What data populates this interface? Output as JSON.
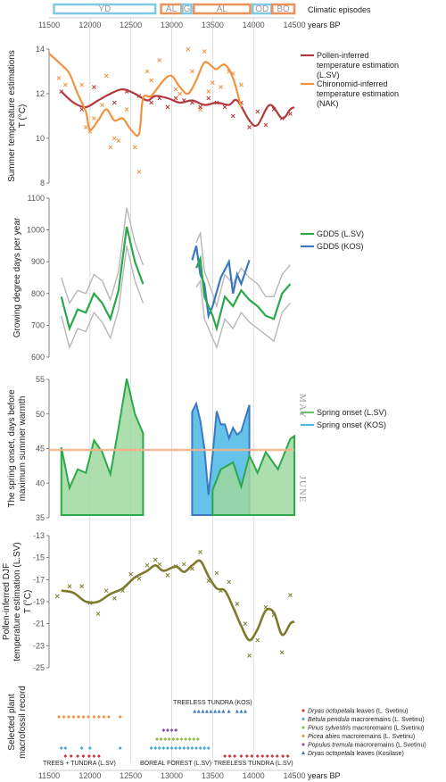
{
  "header": {
    "episodes_label": "Climatic episodes",
    "xunit": "years BP",
    "episodes": [
      {
        "label": "YD",
        "start": 11560,
        "end": 12800,
        "color": "#7fc9e6"
      },
      {
        "label": "AL",
        "start": 12870,
        "end": 13120,
        "color": "#e8915a"
      },
      {
        "label": "G",
        "start": 13130,
        "end": 13240,
        "color": "#7fc9e6"
      },
      {
        "label": "AL",
        "start": 13270,
        "end": 13960,
        "color": "#e8915a"
      },
      {
        "label": "OD",
        "start": 13990,
        "end": 14220,
        "color": "#7fc9e6"
      },
      {
        "label": "BO",
        "start": 14230,
        "end": 14500,
        "color": "#e8915a"
      }
    ],
    "xticks": [
      11500,
      12000,
      12500,
      13000,
      13500,
      14000,
      14500
    ]
  },
  "colors": {
    "red": "#b2383d",
    "orange": "#ef9340",
    "green": "#2aa84a",
    "olive": "#7d7a2c",
    "gray": "#b7b7b7",
    "blue": "#3b78c2",
    "fillgreen": "#9fd89f",
    "fillblue": "#4ab9e6"
  },
  "chart_data": [
    {
      "type": "line",
      "ylabel": "Summer temperature estimations T (°C)",
      "ylim": [
        8,
        14
      ],
      "yticks": [
        8,
        10,
        12,
        14
      ],
      "legend": [
        "Pollen-inferred temperature estimation (L.SV)",
        "Chironomid-inferred temperature estimation (NAK)"
      ],
      "series": [
        {
          "name": "Pollen-inferred temperature estimation (L.SV)",
          "color": "#b2383d",
          "x": [
            11650,
            11800,
            11950,
            12100,
            12250,
            12400,
            12550,
            12700,
            12800,
            12950,
            13100,
            13250,
            13400,
            13550,
            13700,
            13800,
            13950,
            14050,
            14200,
            14350,
            14450,
            14500
          ],
          "y": [
            12.1,
            11.6,
            11.4,
            11.7,
            12.0,
            12.2,
            12.0,
            11.7,
            11.9,
            11.8,
            11.6,
            11.7,
            11.5,
            11.6,
            11.5,
            11.7,
            10.8,
            10.6,
            11.5,
            10.9,
            11.3,
            11.4
          ]
        },
        {
          "name": "Chironomid-inferred temperature estimation (NAK)",
          "color": "#ef9340",
          "x": [
            11500,
            11650,
            11750,
            11850,
            11950,
            12000,
            12100,
            12200,
            12300,
            12400,
            12500,
            12600,
            12650,
            12750,
            12900,
            13000,
            13100,
            13200,
            13300,
            13400,
            13500,
            13550,
            13650,
            13750,
            13850
          ],
          "y": [
            13.8,
            13.3,
            12.9,
            12.0,
            11.2,
            10.4,
            10.8,
            11.3,
            10.8,
            10.9,
            10.4,
            10.2,
            11.8,
            11.9,
            12.6,
            12.8,
            12.3,
            12.0,
            12.6,
            13.4,
            13.2,
            13.1,
            13.3,
            12.7,
            11.4
          ]
        }
      ],
      "scatter": [
        {
          "color": "#ef9340",
          "x": [
            11620,
            11700,
            11900,
            11950,
            12000,
            12050,
            12150,
            12200,
            12250,
            12300,
            12350,
            12450,
            12550,
            12600,
            12700,
            12750,
            12850,
            12950,
            13050,
            13100,
            13200,
            13250,
            13350,
            13400,
            13450,
            13500,
            13600,
            13700,
            13750,
            13850
          ],
          "y": [
            12.7,
            12.4,
            12.4,
            10.5,
            10.3,
            10.9,
            11.5,
            12.8,
            9.6,
            10.0,
            9.9,
            11.3,
            9.6,
            8.5,
            13.0,
            12.6,
            13.5,
            11.4,
            12.2,
            12.0,
            14.0,
            13.0,
            11.3,
            13.9,
            12.1,
            12.5,
            12.3,
            13.0,
            12.9,
            12.4
          ]
        },
        {
          "color": "#b2383d",
          "x": [
            11650,
            11900,
            12050,
            12300,
            12450,
            12600,
            12750,
            12850,
            12950,
            13050,
            13150,
            13250,
            13350,
            13450,
            13550,
            13650,
            13750,
            13850,
            13950,
            14050,
            14150,
            14250,
            14350,
            14450
          ],
          "y": [
            12.1,
            11.3,
            12.3,
            11.6,
            12.1,
            11.9,
            11.6,
            11.8,
            11.4,
            11.8,
            11.7,
            11.6,
            11.4,
            11.8,
            11.6,
            11.4,
            11.0,
            11.6,
            10.5,
            11.2,
            10.6,
            11.3,
            10.9,
            11.1
          ]
        }
      ]
    },
    {
      "type": "line",
      "ylabel": "Growing degree days per year",
      "ylim": [
        600,
        1100
      ],
      "yticks": [
        600,
        700,
        800,
        900,
        1000,
        1100
      ],
      "legend": [
        "GDD5 (L.SV)",
        "GDD5 (KOS)"
      ],
      "series": [
        {
          "name": "GDD5 (L.SV)",
          "color": "#2aa84a",
          "x": [
            11650,
            11750,
            11850,
            11950,
            12050,
            12150,
            12250,
            12350,
            12450,
            12550,
            12650
          ],
          "y": [
            790,
            690,
            750,
            740,
            800,
            770,
            720,
            810,
            1010,
            900,
            830
          ]
        },
        {
          "name": "GDD5 (KOS)",
          "color": "#3b78c2",
          "x": [
            13250,
            13300,
            13350,
            13400,
            13450,
            13500,
            13600,
            13700,
            13750,
            13800,
            13850,
            13950
          ],
          "y": [
            905,
            950,
            860,
            830,
            730,
            760,
            850,
            900,
            800,
            860,
            830,
            905
          ]
        },
        {
          "name": "",
          "color": "#2aa84a",
          "x": [
            13300,
            13350,
            13400,
            13500,
            13550,
            13650,
            13750,
            13850,
            13950,
            14050,
            14150,
            14250,
            14350,
            14450
          ],
          "y": [
            880,
            910,
            790,
            730,
            690,
            790,
            760,
            810,
            780,
            760,
            730,
            720,
            800,
            830
          ]
        }
      ],
      "bounds_upper": [
        {
          "x": [
            11650,
            11750,
            11850,
            11950,
            12050,
            12150,
            12250,
            12350,
            12450,
            12550,
            12650
          ],
          "y": [
            850,
            770,
            810,
            800,
            860,
            840,
            780,
            870,
            1070,
            960,
            890
          ]
        },
        {
          "x": [
            13300,
            13350,
            13400,
            13500,
            13550,
            13650,
            13750,
            13850,
            13950,
            14050,
            14150,
            14250,
            14350,
            14450
          ],
          "y": [
            960,
            990,
            870,
            800,
            760,
            860,
            830,
            880,
            850,
            830,
            790,
            790,
            860,
            890
          ]
        }
      ],
      "bounds_lower": [
        {
          "x": [
            11650,
            11750,
            11850,
            11950,
            12050,
            12150,
            12250,
            12350,
            12450,
            12550,
            12650
          ],
          "y": [
            730,
            630,
            690,
            680,
            740,
            710,
            660,
            750,
            950,
            840,
            770
          ]
        },
        {
          "x": [
            13300,
            13350,
            13400,
            13500,
            13550,
            13650,
            13750,
            13850,
            13950,
            14050,
            14150,
            14250,
            14350,
            14450
          ],
          "y": [
            820,
            840,
            720,
            660,
            630,
            720,
            690,
            740,
            710,
            690,
            670,
            650,
            740,
            770
          ]
        }
      ]
    },
    {
      "type": "area",
      "ylabel": "The spring onset, days before maximum summer warmth",
      "ylim": [
        35,
        55
      ],
      "yticks": [
        35,
        40,
        45,
        50,
        55
      ],
      "reference_line": 44.8,
      "right_labels": [
        "MAY",
        "JUNE"
      ],
      "legend": [
        "Spring onset (L.SV)",
        "Spring onset (KOS)"
      ],
      "series": [
        {
          "name": "Spring onset (L.SV)",
          "color": "#2aa84a",
          "fill": "#9fd89f",
          "x": [
            11650,
            11750,
            11850,
            11950,
            12050,
            12150,
            12250,
            12350,
            12450,
            12550,
            12650
          ],
          "y": [
            45.2,
            39.3,
            42.0,
            41.5,
            46.2,
            44.5,
            41.3,
            48.0,
            55.1,
            50.0,
            47.2
          ]
        },
        {
          "name": "Spring onset (KOS)",
          "color": "#3b78c2",
          "fill": "#4ab9e6",
          "x": [
            13250,
            13300,
            13350,
            13400,
            13450,
            13500,
            13550,
            13600,
            13650,
            13700,
            13750,
            13800,
            13850,
            13950
          ],
          "y": [
            50.3,
            51.5,
            49.0,
            45.0,
            38.3,
            44.0,
            50.4,
            48.5,
            48.5,
            46.5,
            48.0,
            47.0,
            47.5,
            51.3
          ]
        },
        {
          "name": "",
          "color": "#2aa84a",
          "fill": "#9fd89f",
          "x": [
            13500,
            13600,
            13750,
            13850,
            13950,
            14050,
            14150,
            14300,
            14450,
            14500
          ],
          "y": [
            39.0,
            42.0,
            43.0,
            39.5,
            44.0,
            41.5,
            44.5,
            42.0,
            46.4,
            46.8
          ]
        }
      ]
    },
    {
      "type": "line",
      "ylabel": "Pollen-inferred DJF temperature estimation (L.SV) T (°C)",
      "ylim": [
        -25,
        -13
      ],
      "yticks": [
        -25,
        -23,
        -21,
        -19,
        -17,
        -15,
        -13
      ],
      "series": [
        {
          "name": "",
          "color": "#7d7a2c",
          "x": [
            11650,
            11800,
            11950,
            12100,
            12250,
            12400,
            12550,
            12700,
            12800,
            12900,
            13050,
            13150,
            13250,
            13350,
            13450,
            13550,
            13650,
            13750,
            13850,
            13950,
            14050,
            14150,
            14250,
            14350,
            14450,
            14500
          ],
          "y": [
            -18.0,
            -18.2,
            -19.0,
            -19.0,
            -18.3,
            -17.8,
            -16.8,
            -16.2,
            -15.7,
            -16.2,
            -15.8,
            -16.3,
            -15.7,
            -15.3,
            -16.7,
            -17.8,
            -18.0,
            -19.5,
            -21.2,
            -22.5,
            -21.5,
            -19.8,
            -20.0,
            -22.0,
            -21.0,
            -20.8
          ]
        }
      ],
      "scatter": [
        {
          "color": "#7d7a2c",
          "x": [
            11600,
            11750,
            11900,
            12000,
            12100,
            12200,
            12300,
            12400,
            12500,
            12600,
            12700,
            12800,
            12850,
            12950,
            13050,
            13150,
            13250,
            13350,
            13450,
            13550,
            13600,
            13700,
            13800,
            13900,
            13950,
            14050,
            14150,
            14250,
            14350,
            14450
          ],
          "y": [
            -18.5,
            -17.6,
            -17.6,
            -19.1,
            -20.1,
            -18.0,
            -18.7,
            -18.0,
            -16.5,
            -16.9,
            -15.7,
            -15.2,
            -15.6,
            -16.6,
            -15.8,
            -15.6,
            -16.0,
            -14.5,
            -17.1,
            -16.4,
            -18.0,
            -17.2,
            -19.2,
            -21.0,
            -23.9,
            -22.5,
            -19.5,
            -20.2,
            -23.6,
            -18.4
          ]
        }
      ]
    },
    {
      "type": "scatter",
      "ylabel": "Selected plant macrofossil record",
      "zone_labels": {
        "kos": "TREELESS TUNDRA (KOS)",
        "a": "TREES + TUNDRA (L.SV)",
        "b": "BOREAL FOREST (L.SV)",
        "c": "TREELESS TUNDRA (L.SV)"
      },
      "legend": [
        {
          "pre": "",
          "it": "Dryas octopetala",
          "post": " leaves (L. Svetinu)",
          "color": "#c43b3b",
          "marker": "diamond"
        },
        {
          "pre": "",
          "it": "Betula pendula",
          "post": " macroremains (L. Svetinu)",
          "color": "#4aa8d8",
          "marker": "diamond"
        },
        {
          "pre": "",
          "it": "Pinus sylvestris",
          "post": " macroremains (L.Svetinu)",
          "color": "#8bbf4a",
          "marker": "diamond"
        },
        {
          "pre": "",
          "it": "Picea abies",
          "post": " macroremains (L. Svetinu)",
          "color": "#ef9340",
          "marker": "diamond"
        },
        {
          "pre": "",
          "it": "Populus tremula",
          "post": " macroremains (L.Svetinu)",
          "color": "#8a4fb0",
          "marker": "diamond"
        },
        {
          "pre": "",
          "it": "Dryas octopetala",
          "post": " leaves (Kosilase)",
          "color": "#3b78c2",
          "marker": "triangle"
        }
      ],
      "rows": [
        {
          "color": "#3b78c2",
          "marker": "triangle",
          "row": 0,
          "x": [
            13280,
            13330,
            13380,
            13430,
            13480,
            13530,
            13580,
            13630,
            13700,
            13800,
            13850,
            13900
          ]
        },
        {
          "color": "#ef9340",
          "marker": "diamond",
          "row": 1,
          "x": [
            11620,
            11680,
            11740,
            11800,
            11860,
            11920,
            11980,
            12050,
            12110,
            12170,
            12230,
            12370
          ]
        },
        {
          "color": "#8a4fb0",
          "marker": "diamond",
          "row": 2,
          "x": [
            12900,
            12950,
            13000,
            13050
          ]
        },
        {
          "color": "#8bbf4a",
          "marker": "diamond",
          "row": 3,
          "x": [
            12820,
            12870,
            12920,
            12970,
            13020,
            13070,
            13120,
            13170,
            13220,
            13270,
            13320
          ]
        },
        {
          "color": "#4aa8d8",
          "marker": "diamond",
          "row": 4,
          "x": [
            11650,
            11700,
            11900,
            12000,
            12370,
            12750,
            12800,
            12850,
            12900,
            12950,
            13000,
            13050,
            13100,
            13150,
            13200,
            13250,
            13300,
            13350,
            13400,
            13450
          ]
        },
        {
          "color": "#c43b3b",
          "marker": "diamond",
          "row": 5,
          "x": [
            11700,
            11770,
            11850,
            11920,
            11990,
            12050,
            12110,
            13650,
            13710,
            13770,
            13850,
            13920,
            13980,
            14050,
            14110,
            14170,
            14230,
            14290,
            14360,
            14420
          ]
        }
      ]
    }
  ],
  "xaxis_label": "years BP"
}
